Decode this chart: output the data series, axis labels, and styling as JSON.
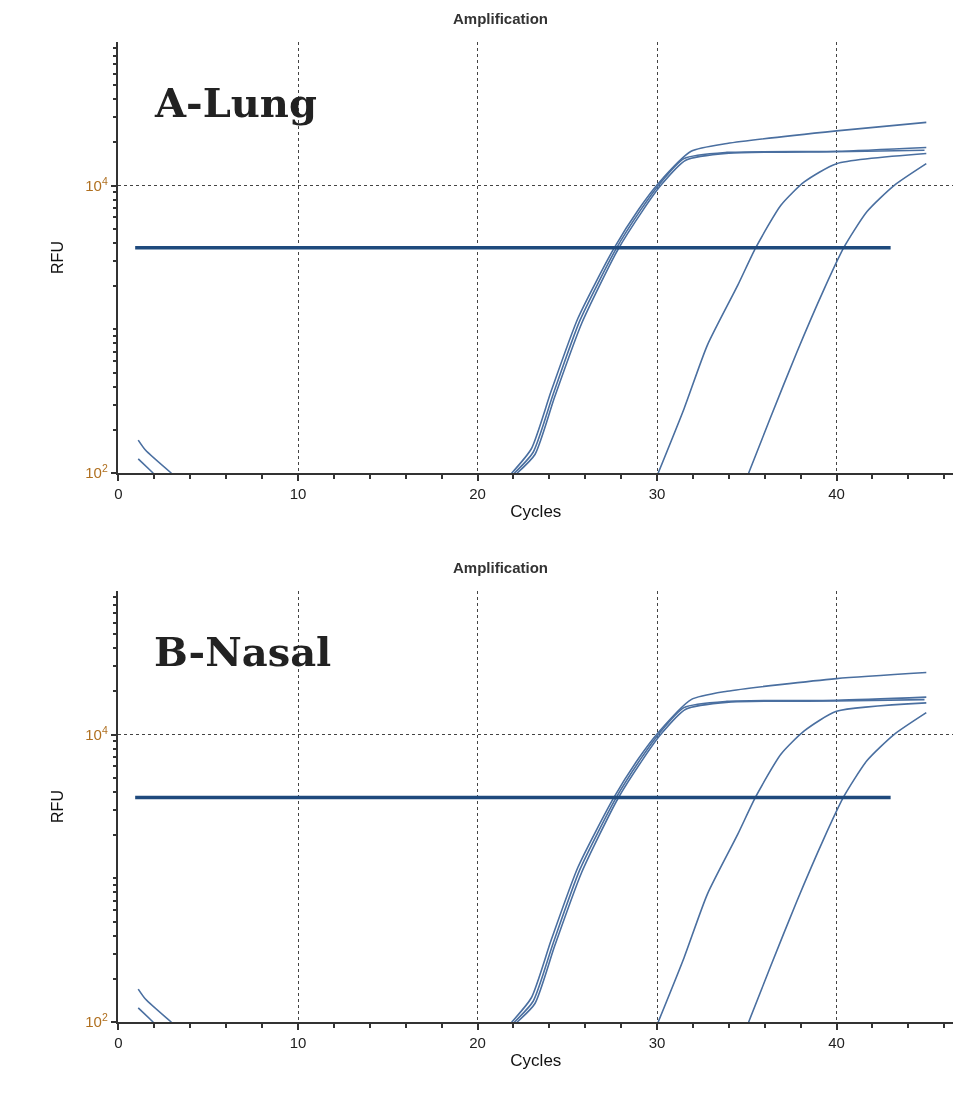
{
  "chart_data": [
    {
      "type": "line",
      "title": "Amplification",
      "xlabel": "Cycles",
      "ylabel": "RFU",
      "annotations": [
        "A-Lung"
      ],
      "log": "y",
      "grid": true,
      "xlim": [
        0,
        46.5
      ],
      "ylim": [
        100,
        100000
      ],
      "xticks": [
        0,
        10,
        20,
        30,
        40,
        {
          "value": 2,
          "label": null
        },
        {
          "value": 4,
          "label": null
        },
        {
          "value": 6,
          "label": null
        },
        {
          "value": 8,
          "label": null
        },
        {
          "value": 12,
          "label": null
        },
        {
          "value": 14,
          "label": null
        },
        {
          "value": 16,
          "label": null
        },
        {
          "value": 18,
          "label": null
        },
        {
          "value": 22,
          "label": null
        },
        {
          "value": 24,
          "label": null
        },
        {
          "value": 26,
          "label": null
        },
        {
          "value": 28,
          "label": null
        },
        {
          "value": 32,
          "label": null
        },
        {
          "value": 34,
          "label": null
        },
        {
          "value": 36,
          "label": null
        },
        {
          "value": 38,
          "label": null
        },
        {
          "value": 42,
          "label": null
        },
        {
          "value": 44,
          "label": null
        },
        {
          "value": 46,
          "label": null
        }
      ],
      "yticks": [
        {
          "value": 100,
          "label": "10$^{2}$"
        },
        {
          "value": 10000,
          "label": "10$^{4}$"
        },
        {
          "value": 200,
          "label": null
        },
        {
          "value": 300,
          "label": null
        },
        {
          "value": 400,
          "label": null
        },
        {
          "value": 500,
          "label": null
        },
        {
          "value": 600,
          "label": null
        },
        {
          "value": 700,
          "label": null
        },
        {
          "value": 800,
          "label": null
        },
        {
          "value": 900,
          "label": null
        },
        {
          "value": 1000,
          "label": null
        },
        {
          "value": 2000,
          "label": null
        },
        {
          "value": 3000,
          "label": null
        },
        {
          "value": 4000,
          "label": null
        },
        {
          "value": 5000,
          "label": null
        },
        {
          "value": 6000,
          "label": null
        },
        {
          "value": 7000,
          "label": null
        },
        {
          "value": 8000,
          "label": null
        },
        {
          "value": 9000,
          "label": null
        },
        {
          "value": 20000,
          "label": null
        },
        {
          "value": 30000,
          "label": null
        },
        {
          "value": 40000,
          "label": null
        },
        {
          "value": 50000,
          "label": null
        },
        {
          "value": 60000,
          "label": null
        },
        {
          "value": 70000,
          "label": null
        },
        {
          "value": 80000,
          "label": null
        },
        {
          "value": 90000,
          "label": null
        }
      ],
      "ref_lines": [
        {
          "axis": "y",
          "value": 3700,
          "color": "#1f4a7d"
        }
      ],
      "series": [
        {
          "color": "#4a6fa0",
          "x": [
            21.9,
            23,
            24.1,
            25.6,
            27.6,
            29,
            30.06,
            31.9,
            33.9,
            40,
            45
          ],
          "values": [
            100,
            148,
            371,
            1200,
            3660,
            6900,
            10300,
            17300,
            19600,
            24000,
            27500
          ]
        },
        {
          "color": "#4a6fa0",
          "x": [
            22.05,
            23.1,
            24.2,
            25.7,
            27.7,
            29.1,
            30.1,
            31.5,
            33.9,
            40,
            45
          ],
          "values": [
            100,
            140,
            350,
            1150,
            3600,
            6800,
            10100,
            15400,
            17000,
            17300,
            18400
          ]
        },
        {
          "color": "#4a6fa0",
          "x": [
            22.2,
            23.2,
            24.3,
            25.8,
            27.8,
            29.2,
            30.2,
            31.6,
            34,
            40,
            44.9
          ],
          "values": [
            100,
            135,
            340,
            1100,
            3550,
            6700,
            10000,
            15000,
            16800,
            17200,
            17600
          ]
        },
        {
          "color": "#4a6fa0",
          "x": [
            1.1,
            1.5,
            2.95,
            3.5,
            30.06,
            31.5,
            32.8,
            34.5,
            35.5,
            36.9,
            38.2,
            40,
            45
          ],
          "values": [
            170,
            145,
            100,
            null,
            100,
            280,
            775,
            2030,
            3700,
            7300,
            10600,
            14200,
            16700
          ]
        },
        {
          "color": "#4a6fa0",
          "x": [
            1.1,
            1.94,
            2.5,
            35.1,
            36.3,
            37.8,
            39.3,
            40.4,
            41.7,
            43.2,
            45
          ],
          "values": [
            126,
            100,
            null,
            100,
            240,
            700,
            1900,
            3700,
            6600,
            10000,
            14200
          ]
        }
      ]
    },
    {
      "type": "line",
      "title": "Amplification",
      "xlabel": "Cycles",
      "ylabel": "RFU",
      "annotations": [
        "B-Nasal"
      ],
      "log": "y",
      "grid": true,
      "xlim": [
        0,
        46.5
      ],
      "ylim": [
        100,
        100000
      ],
      "xticks": [
        0,
        10,
        20,
        30,
        40,
        {
          "value": 2,
          "label": null
        },
        {
          "value": 4,
          "label": null
        },
        {
          "value": 6,
          "label": null
        },
        {
          "value": 8,
          "label": null
        },
        {
          "value": 12,
          "label": null
        },
        {
          "value": 14,
          "label": null
        },
        {
          "value": 16,
          "label": null
        },
        {
          "value": 18,
          "label": null
        },
        {
          "value": 22,
          "label": null
        },
        {
          "value": 24,
          "label": null
        },
        {
          "value": 26,
          "label": null
        },
        {
          "value": 28,
          "label": null
        },
        {
          "value": 32,
          "label": null
        },
        {
          "value": 34,
          "label": null
        },
        {
          "value": 36,
          "label": null
        },
        {
          "value": 38,
          "label": null
        },
        {
          "value": 42,
          "label": null
        },
        {
          "value": 44,
          "label": null
        },
        {
          "value": 46,
          "label": null
        }
      ],
      "yticks": [
        {
          "value": 100,
          "label": "10$^{2}$"
        },
        {
          "value": 10000,
          "label": "10$^{4}$"
        },
        {
          "value": 200,
          "label": null
        },
        {
          "value": 300,
          "label": null
        },
        {
          "value": 400,
          "label": null
        },
        {
          "value": 500,
          "label": null
        },
        {
          "value": 600,
          "label": null
        },
        {
          "value": 700,
          "label": null
        },
        {
          "value": 800,
          "label": null
        },
        {
          "value": 900,
          "label": null
        },
        {
          "value": 1000,
          "label": null
        },
        {
          "value": 2000,
          "label": null
        },
        {
          "value": 3000,
          "label": null
        },
        {
          "value": 4000,
          "label": null
        },
        {
          "value": 5000,
          "label": null
        },
        {
          "value": 6000,
          "label": null
        },
        {
          "value": 7000,
          "label": null
        },
        {
          "value": 8000,
          "label": null
        },
        {
          "value": 9000,
          "label": null
        },
        {
          "value": 20000,
          "label": null
        },
        {
          "value": 30000,
          "label": null
        },
        {
          "value": 40000,
          "label": null
        },
        {
          "value": 50000,
          "label": null
        },
        {
          "value": 60000,
          "label": null
        },
        {
          "value": 70000,
          "label": null
        },
        {
          "value": 80000,
          "label": null
        },
        {
          "value": 90000,
          "label": null
        }
      ],
      "ref_lines": [
        {
          "axis": "y",
          "value": 3650,
          "color": "#1f4a7d"
        }
      ],
      "series": [
        {
          "color": "#4a6fa0",
          "x": [
            21.9,
            23,
            24.1,
            25.6,
            27.6,
            29,
            30.06,
            31.9,
            33.9,
            40,
            45
          ],
          "values": [
            100,
            148,
            371,
            1200,
            3660,
            6900,
            10300,
            17500,
            20000,
            24500,
            27000
          ]
        },
        {
          "color": "#4a6fa0",
          "x": [
            22.05,
            23.1,
            24.2,
            25.7,
            27.7,
            29.1,
            30.1,
            31.5,
            33.9,
            40,
            45
          ],
          "values": [
            100,
            140,
            350,
            1150,
            3600,
            6800,
            10100,
            15400,
            17000,
            17300,
            18200
          ]
        },
        {
          "color": "#4a6fa0",
          "x": [
            22.2,
            23.2,
            24.3,
            25.8,
            27.8,
            29.2,
            30.2,
            31.6,
            34,
            40,
            44.9
          ],
          "values": [
            100,
            135,
            340,
            1100,
            3550,
            6700,
            10000,
            15000,
            16800,
            17100,
            17500
          ]
        },
        {
          "color": "#4a6fa0",
          "x": [
            1.1,
            1.5,
            2.95,
            3.5,
            30.06,
            31.5,
            32.8,
            34.5,
            35.5,
            36.9,
            38.2,
            40,
            45
          ],
          "values": [
            170,
            145,
            100,
            null,
            100,
            280,
            775,
            2030,
            3700,
            7300,
            10600,
            14500,
            16600
          ]
        },
        {
          "color": "#4a6fa0",
          "x": [
            1.1,
            1.94,
            2.5,
            35.1,
            36.3,
            37.8,
            39.3,
            40.4,
            41.7,
            43.2,
            45
          ],
          "values": [
            126,
            100,
            null,
            100,
            240,
            700,
            1900,
            3700,
            6600,
            10000,
            14200
          ]
        }
      ]
    }
  ]
}
